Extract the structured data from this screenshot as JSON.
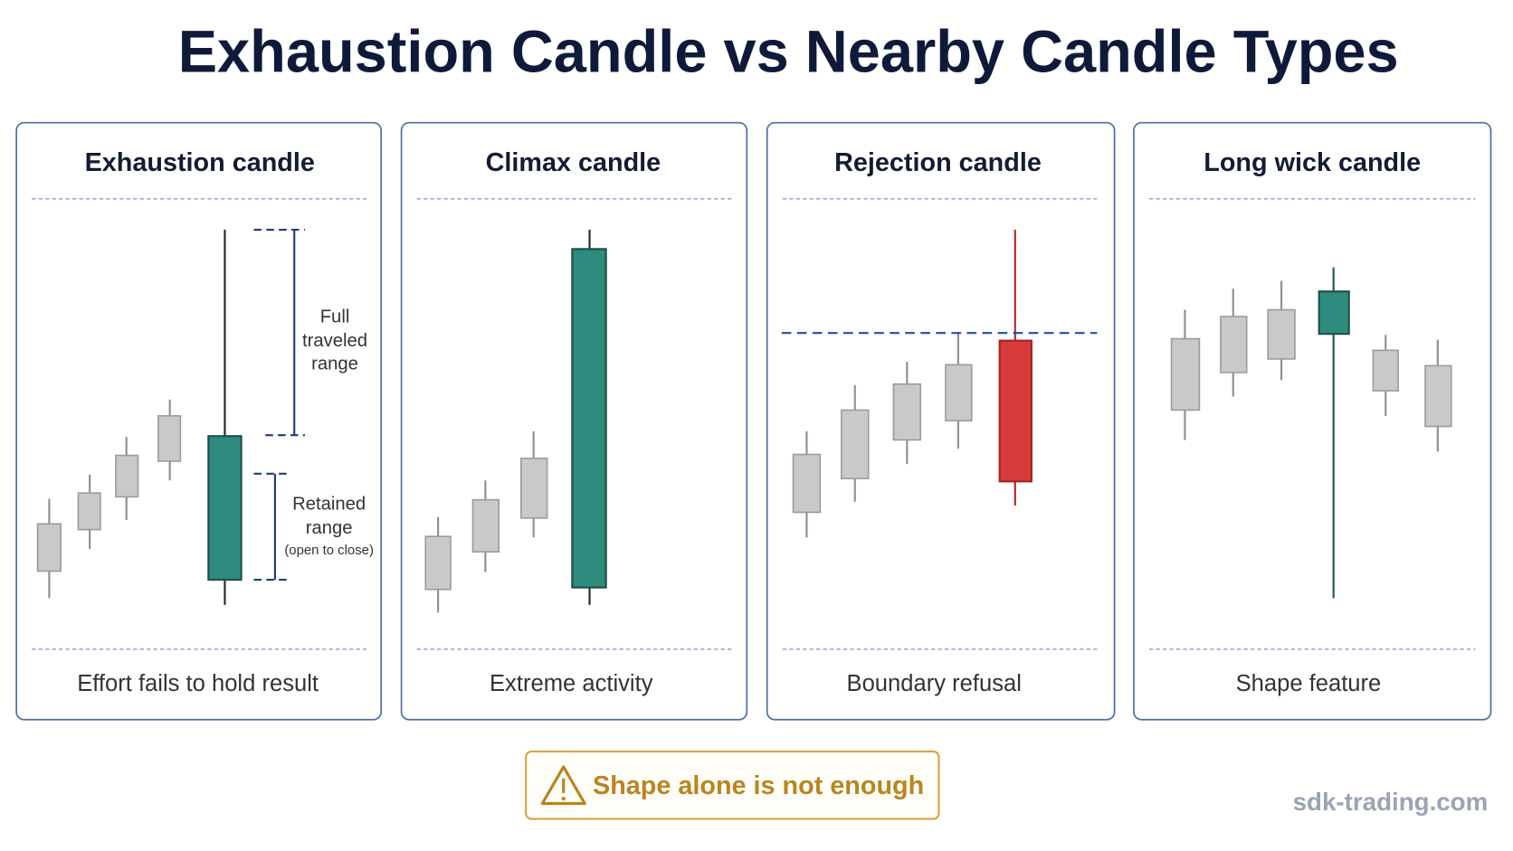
{
  "title": "Exhaustion Candle vs Nearby Candle Types",
  "panels": [
    {
      "title": "Exhaustion candle",
      "caption": "Effort fails to hold result",
      "annotations": {
        "full_range": [
          "Full",
          "traveled",
          "range"
        ],
        "retained_range": [
          "Retained",
          "range"
        ],
        "retained_note": "(open to close)"
      }
    },
    {
      "title": "Climax candle",
      "caption": "Extreme activity"
    },
    {
      "title": "Rejection candle",
      "caption": "Boundary refusal"
    },
    {
      "title": "Long wick candle",
      "caption": "Shape feature"
    }
  ],
  "warning": "Shape alone is not enough",
  "footer": "sdk-trading.com"
}
